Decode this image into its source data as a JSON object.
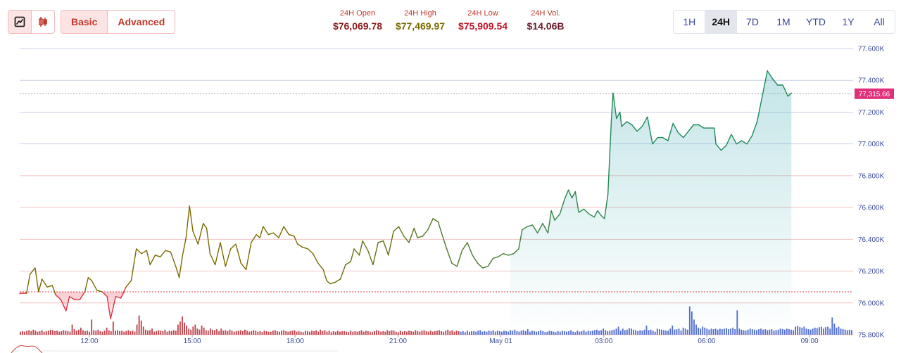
{
  "toolbar": {
    "line_chart_icon": "line-chart-icon",
    "candlestick_icon": "candlestick-icon",
    "basic_label": "Basic",
    "advanced_label": "Advanced"
  },
  "stats": {
    "open": {
      "label": "24H Open",
      "value": "$76,069.78",
      "color": "#8b1a1a"
    },
    "high": {
      "label": "24H High",
      "value": "$77,469.97",
      "color": "#7a6a00"
    },
    "low": {
      "label": "24H Low",
      "value": "$75,909.54",
      "color": "#c0152a"
    },
    "vol": {
      "label": "24H Vol.",
      "value": "$14.06B",
      "color": "#6b1a2a"
    }
  },
  "ranges": [
    "1H",
    "24H",
    "7D",
    "1M",
    "YTD",
    "1Y",
    "All"
  ],
  "active_range": "24H",
  "current_price_label": "77,315.66",
  "colors": {
    "up_line": "#1e8a5a",
    "mid_line": "#7a6a00",
    "down_line": "#e03040",
    "vol_red": "#b5242f",
    "vol_blue": "#3456c8",
    "price_tag": "#e0307a",
    "gridline": "#f2c4c4",
    "gridline_blue": "#c9d1ea"
  },
  "chart_data": {
    "type": "line",
    "title": "",
    "ylim": [
      75800,
      77600
    ],
    "y_ticks": [
      75800,
      76000,
      76200,
      76400,
      76600,
      76800,
      77000,
      77200,
      77400,
      77600
    ],
    "y_tick_labels": [
      "75.800K",
      "76.000K",
      "76.200K",
      "76.400K",
      "76.600K",
      "76.800K",
      "77.000K",
      "77.200K",
      "77.400K",
      "77.600K"
    ],
    "x_ticks": [
      {
        "label": "12:00",
        "t": 2.03
      },
      {
        "label": "15:00",
        "t": 5.03
      },
      {
        "label": "18:00",
        "t": 8.03
      },
      {
        "label": "21:00",
        "t": 11.03
      },
      {
        "label": "May 01",
        "t": 14.03
      },
      {
        "label": "03:00",
        "t": 17.03
      },
      {
        "label": "06:00",
        "t": 20.03
      },
      {
        "label": "09:00",
        "t": 23.03
      }
    ],
    "t_range": [
      0,
      24.3
    ],
    "open_price": 76069.78,
    "current_price": 77315.66,
    "price": [
      [
        0.0,
        76060
      ],
      [
        0.2,
        76060
      ],
      [
        0.3,
        76180
      ],
      [
        0.45,
        76220
      ],
      [
        0.55,
        76070
      ],
      [
        0.65,
        76150
      ],
      [
        0.8,
        76100
      ],
      [
        0.95,
        76110
      ],
      [
        1.05,
        76050
      ],
      [
        1.2,
        76020
      ],
      [
        1.35,
        75950
      ],
      [
        1.45,
        76040
      ],
      [
        1.6,
        76020
      ],
      [
        1.75,
        76020
      ],
      [
        1.9,
        76070
      ],
      [
        2.0,
        76160
      ],
      [
        2.1,
        76140
      ],
      [
        2.25,
        76080
      ],
      [
        2.4,
        76070
      ],
      [
        2.55,
        76040
      ],
      [
        2.65,
        75900
      ],
      [
        2.8,
        76040
      ],
      [
        2.95,
        76030
      ],
      [
        3.1,
        76100
      ],
      [
        3.25,
        76140
      ],
      [
        3.4,
        76340
      ],
      [
        3.55,
        76310
      ],
      [
        3.7,
        76330
      ],
      [
        3.8,
        76240
      ],
      [
        3.95,
        76300
      ],
      [
        4.1,
        76290
      ],
      [
        4.25,
        76330
      ],
      [
        4.4,
        76320
      ],
      [
        4.55,
        76230
      ],
      [
        4.65,
        76160
      ],
      [
        4.75,
        76300
      ],
      [
        4.85,
        76410
      ],
      [
        4.95,
        76610
      ],
      [
        5.05,
        76450
      ],
      [
        5.2,
        76370
      ],
      [
        5.35,
        76500
      ],
      [
        5.45,
        76470
      ],
      [
        5.55,
        76310
      ],
      [
        5.7,
        76240
      ],
      [
        5.85,
        76380
      ],
      [
        6.0,
        76230
      ],
      [
        6.15,
        76340
      ],
      [
        6.3,
        76370
      ],
      [
        6.45,
        76250
      ],
      [
        6.6,
        76210
      ],
      [
        6.75,
        76380
      ],
      [
        6.9,
        76430
      ],
      [
        7.0,
        76410
      ],
      [
        7.1,
        76480
      ],
      [
        7.25,
        76430
      ],
      [
        7.4,
        76440
      ],
      [
        7.55,
        76410
      ],
      [
        7.7,
        76480
      ],
      [
        7.85,
        76430
      ],
      [
        8.0,
        76420
      ],
      [
        8.1,
        76370
      ],
      [
        8.25,
        76350
      ],
      [
        8.4,
        76340
      ],
      [
        8.55,
        76310
      ],
      [
        8.7,
        76250
      ],
      [
        8.85,
        76210
      ],
      [
        8.95,
        76140
      ],
      [
        9.05,
        76120
      ],
      [
        9.2,
        76130
      ],
      [
        9.35,
        76150
      ],
      [
        9.5,
        76240
      ],
      [
        9.65,
        76260
      ],
      [
        9.75,
        76340
      ],
      [
        9.9,
        76300
      ],
      [
        10.0,
        76390
      ],
      [
        10.15,
        76330
      ],
      [
        10.3,
        76240
      ],
      [
        10.45,
        76380
      ],
      [
        10.6,
        76390
      ],
      [
        10.75,
        76300
      ],
      [
        10.9,
        76450
      ],
      [
        11.05,
        76480
      ],
      [
        11.2,
        76420
      ],
      [
        11.35,
        76380
      ],
      [
        11.5,
        76470
      ],
      [
        11.6,
        76410
      ],
      [
        11.75,
        76420
      ],
      [
        11.9,
        76460
      ],
      [
        12.05,
        76530
      ],
      [
        12.2,
        76510
      ],
      [
        12.3,
        76440
      ],
      [
        12.45,
        76340
      ],
      [
        12.6,
        76250
      ],
      [
        12.75,
        76230
      ],
      [
        12.9,
        76330
      ],
      [
        13.05,
        76380
      ],
      [
        13.2,
        76300
      ],
      [
        13.35,
        76250
      ],
      [
        13.5,
        76220
      ],
      [
        13.65,
        76230
      ],
      [
        13.8,
        76280
      ],
      [
        13.95,
        76290
      ],
      [
        14.1,
        76310
      ],
      [
        14.25,
        76300
      ],
      [
        14.4,
        76310
      ],
      [
        14.55,
        76340
      ],
      [
        14.65,
        76460
      ],
      [
        14.8,
        76480
      ],
      [
        14.95,
        76490
      ],
      [
        15.1,
        76440
      ],
      [
        15.25,
        76500
      ],
      [
        15.4,
        76440
      ],
      [
        15.5,
        76580
      ],
      [
        15.6,
        76520
      ],
      [
        15.75,
        76560
      ],
      [
        15.9,
        76660
      ],
      [
        16.0,
        76710
      ],
      [
        16.1,
        76660
      ],
      [
        16.2,
        76700
      ],
      [
        16.3,
        76570
      ],
      [
        16.45,
        76590
      ],
      [
        16.6,
        76560
      ],
      [
        16.75,
        76540
      ],
      [
        16.85,
        76580
      ],
      [
        16.95,
        76550
      ],
      [
        17.05,
        76530
      ],
      [
        17.15,
        76680
      ],
      [
        17.25,
        77150
      ],
      [
        17.3,
        77320
      ],
      [
        17.4,
        77160
      ],
      [
        17.5,
        77200
      ],
      [
        17.55,
        77110
      ],
      [
        17.7,
        77140
      ],
      [
        17.85,
        77120
      ],
      [
        18.0,
        77080
      ],
      [
        18.15,
        77110
      ],
      [
        18.3,
        77170
      ],
      [
        18.45,
        77000
      ],
      [
        18.6,
        77040
      ],
      [
        18.75,
        77040
      ],
      [
        18.9,
        77020
      ],
      [
        19.05,
        77130
      ],
      [
        19.2,
        77070
      ],
      [
        19.35,
        77040
      ],
      [
        19.5,
        77080
      ],
      [
        19.65,
        77120
      ],
      [
        19.8,
        77120
      ],
      [
        19.95,
        77100
      ],
      [
        20.1,
        77100
      ],
      [
        20.25,
        77100
      ],
      [
        20.3,
        77000
      ],
      [
        20.45,
        76960
      ],
      [
        20.6,
        76990
      ],
      [
        20.75,
        77060
      ],
      [
        20.9,
        77000
      ],
      [
        21.05,
        77020
      ],
      [
        21.2,
        77000
      ],
      [
        21.35,
        77050
      ],
      [
        21.5,
        77140
      ],
      [
        21.65,
        77300
      ],
      [
        21.8,
        77460
      ],
      [
        21.95,
        77410
      ],
      [
        22.1,
        77370
      ],
      [
        22.25,
        77370
      ],
      [
        22.4,
        77300
      ],
      [
        22.5,
        77320
      ]
    ],
    "volume": [
      6,
      7,
      6,
      8,
      9,
      7,
      10,
      8,
      6,
      7,
      9,
      6,
      7,
      8,
      10,
      9,
      7,
      8,
      6,
      7,
      9,
      8,
      7,
      6,
      20,
      11,
      8,
      10,
      14,
      9,
      7,
      8,
      6,
      30,
      9,
      8,
      10,
      7,
      6,
      8,
      14,
      9,
      7,
      26,
      8,
      9,
      7,
      8,
      6,
      7,
      9,
      7,
      8,
      6,
      20,
      38,
      28,
      16,
      10,
      8,
      9,
      12,
      6,
      7,
      9,
      8,
      7,
      10,
      6,
      8,
      7,
      9,
      8,
      20,
      26,
      36,
      24,
      18,
      12,
      10,
      16,
      20,
      12,
      10,
      18,
      14,
      9,
      8,
      12,
      10,
      9,
      11,
      7,
      12,
      8,
      9,
      7,
      10,
      8,
      6,
      7,
      8,
      9,
      7,
      10,
      8,
      6,
      7,
      9,
      8,
      6,
      7,
      5,
      8,
      7,
      6,
      6,
      8,
      9,
      7,
      6,
      8,
      9,
      7,
      6,
      7,
      8,
      9,
      6,
      7,
      6,
      5,
      8,
      7,
      6,
      8,
      7,
      9,
      6,
      10,
      7,
      9,
      6,
      8,
      5,
      7,
      6,
      8,
      6,
      7,
      7,
      6,
      5,
      8,
      6,
      7,
      6,
      7,
      9,
      6,
      8,
      7,
      6,
      5,
      7,
      9,
      8,
      6,
      7,
      6,
      9,
      7,
      9,
      8,
      6,
      5,
      8,
      6,
      7,
      6,
      8,
      7,
      6,
      9,
      7,
      6,
      8,
      9,
      7,
      6,
      8,
      6,
      7,
      8,
      9,
      7,
      6,
      8,
      10,
      7,
      9,
      6,
      8,
      7,
      6,
      7,
      5,
      8,
      6,
      7,
      7,
      6,
      8,
      9,
      6,
      7,
      6,
      8,
      7,
      9,
      6,
      8,
      7,
      6,
      8,
      7,
      6,
      9,
      8,
      10,
      7,
      6,
      8,
      9,
      7,
      11,
      6,
      8,
      7,
      6,
      7,
      9,
      7,
      5,
      6,
      8,
      7,
      6,
      5,
      7,
      6,
      8,
      7,
      6,
      7,
      9,
      6,
      5,
      8,
      6,
      7,
      9,
      6,
      8,
      7,
      8,
      9,
      10,
      8,
      9,
      12,
      9,
      7,
      8,
      9,
      10,
      12,
      16,
      8,
      12,
      9,
      10,
      13,
      12,
      10,
      9,
      7,
      9,
      8,
      10,
      18,
      9,
      10,
      8,
      6,
      12,
      11,
      10,
      9,
      8,
      8,
      12,
      18,
      10,
      11,
      12,
      8,
      14,
      12,
      10,
      56,
      46,
      30,
      20,
      14,
      12,
      16,
      14,
      12,
      10,
      12,
      11,
      12,
      10,
      12,
      11,
      12,
      13,
      11,
      12,
      14,
      11,
      48,
      12,
      10,
      9,
      8,
      10,
      12,
      11,
      10,
      9,
      11,
      12,
      10,
      11,
      9,
      10,
      11,
      8,
      9,
      10,
      12,
      11,
      10,
      12,
      11,
      10,
      9,
      16,
      17,
      15,
      14,
      16,
      12,
      11,
      10,
      12,
      14,
      13,
      15,
      16,
      12,
      15,
      16,
      12,
      34,
      22,
      14,
      16,
      12,
      11,
      10,
      9,
      10,
      9
    ]
  }
}
